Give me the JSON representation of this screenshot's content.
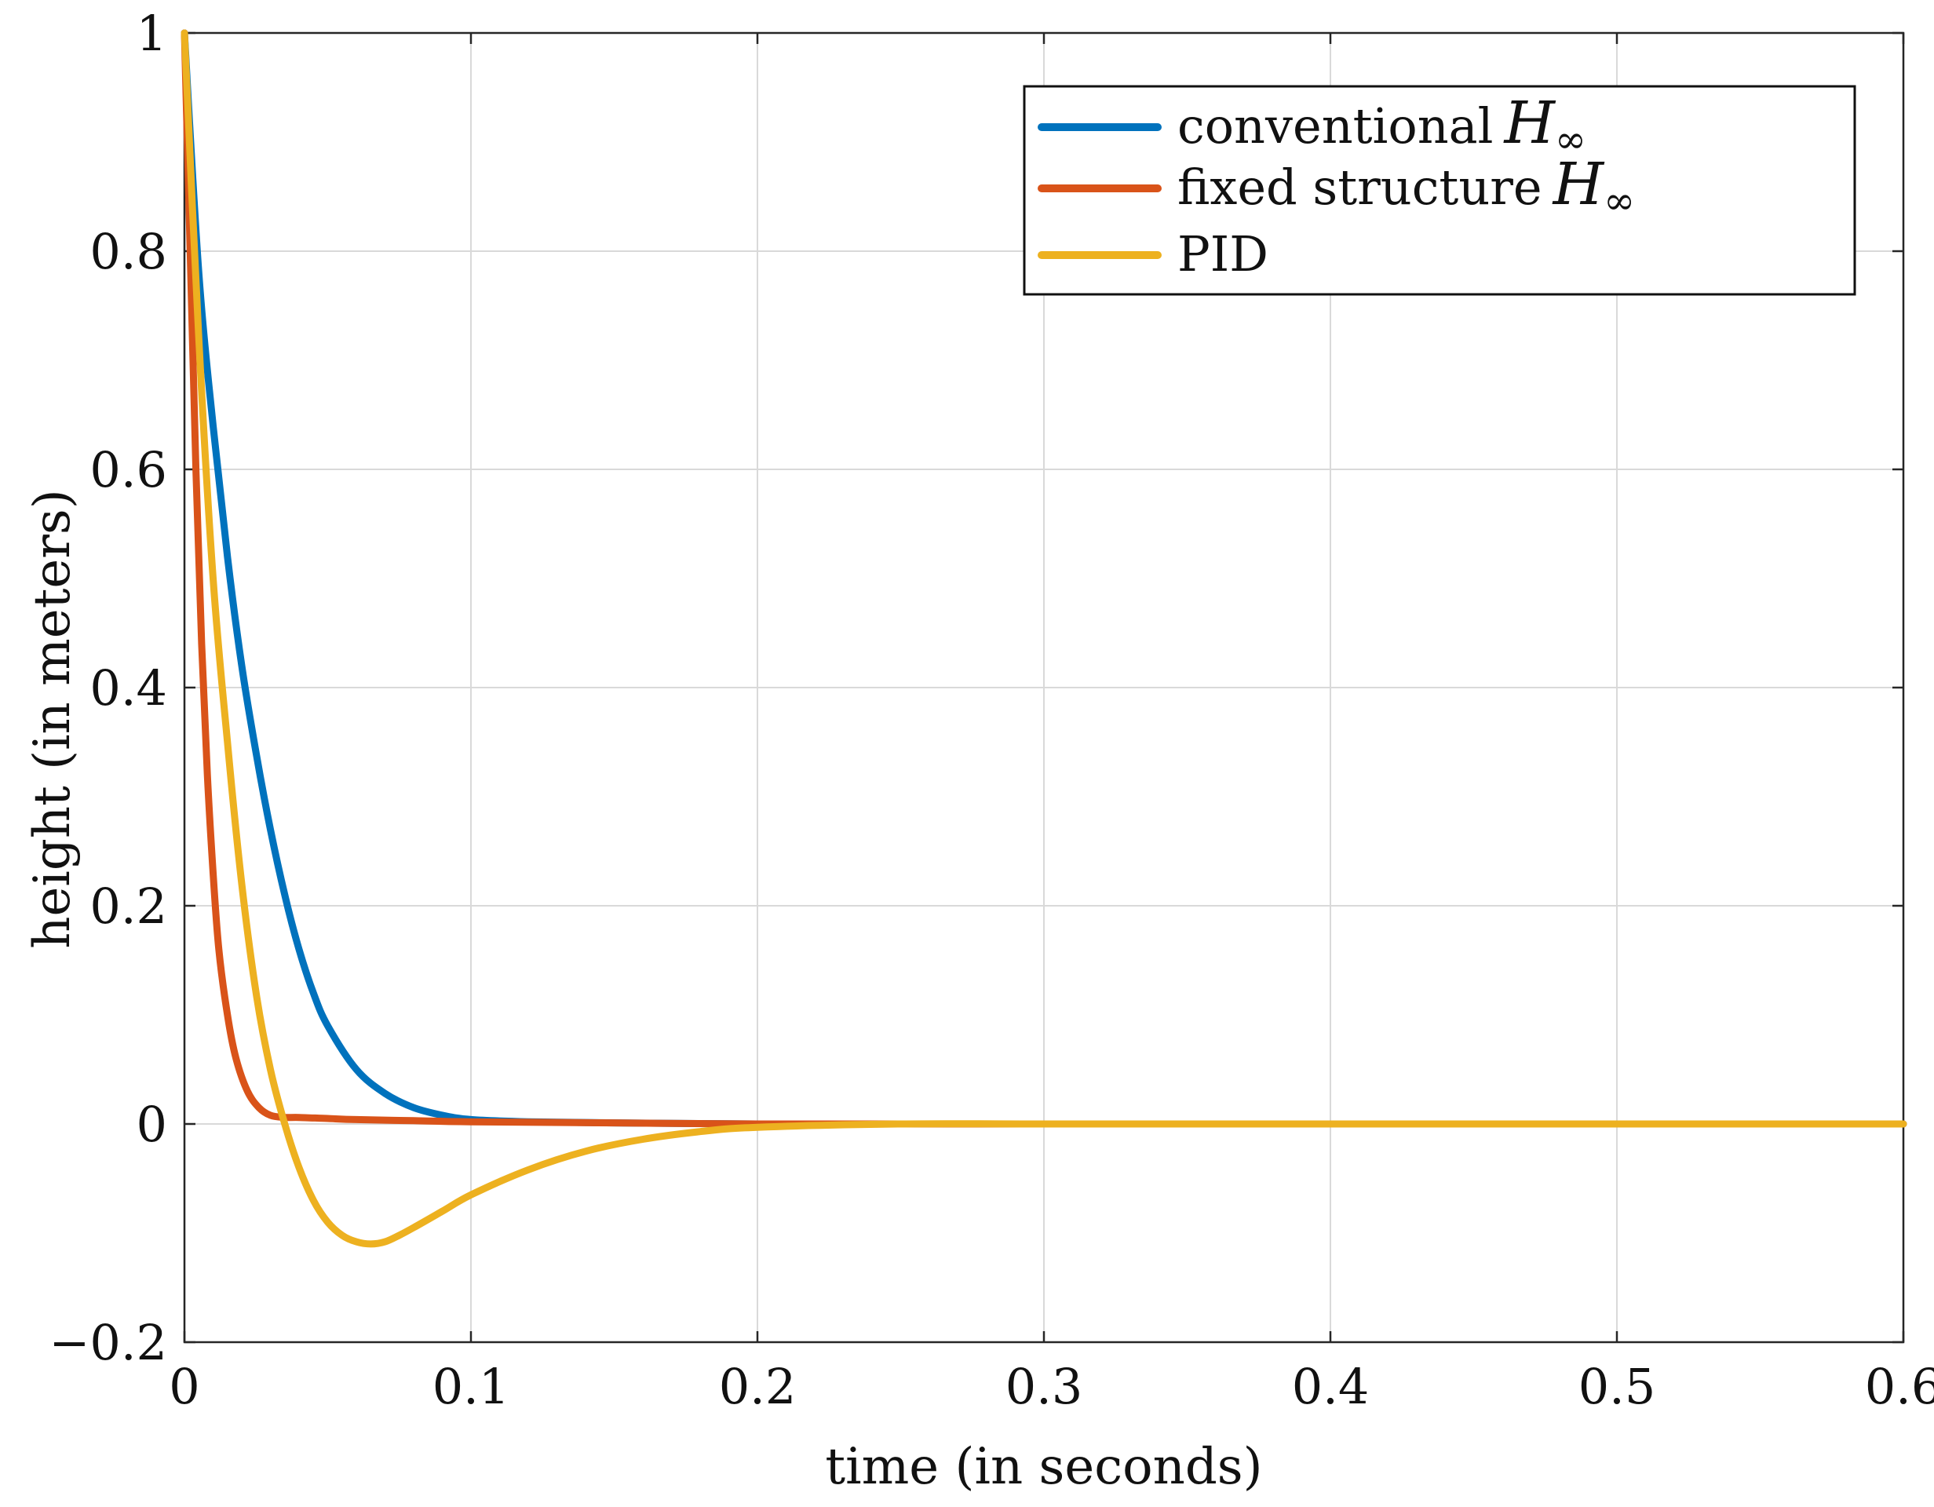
{
  "chart_data": {
    "type": "line",
    "title": "",
    "xlabel": "time (in seconds)",
    "ylabel": "height (in meters)",
    "xlim": [
      0,
      0.6
    ],
    "ylim": [
      -0.2,
      1
    ],
    "grid": true,
    "legend_position": "top-right",
    "x_ticks": [
      0,
      0.1,
      0.2,
      0.3,
      0.4,
      0.5,
      0.6
    ],
    "x_tick_labels": [
      "0",
      "0.1",
      "0.2",
      "0.3",
      "0.4",
      "0.5",
      "0.6"
    ],
    "y_ticks": [
      -0.2,
      0,
      0.2,
      0.4,
      0.6,
      0.8,
      1
    ],
    "y_tick_labels": [
      "−0.2",
      "0",
      "0.2",
      "0.4",
      "0.6",
      "0.8",
      "1"
    ],
    "series": [
      {
        "name": "conventional H∞",
        "label_text": "conventional",
        "label_symbol": "H",
        "label_subscript": "∞",
        "color": "#0072BD",
        "x": [
          0,
          0.005,
          0.01,
          0.015,
          0.02,
          0.025,
          0.03,
          0.035,
          0.04,
          0.045,
          0.05,
          0.06,
          0.07,
          0.08,
          0.09,
          0.1,
          0.12,
          0.15,
          0.2,
          0.3,
          0.4,
          0.5,
          0.6
        ],
        "y": [
          1.0,
          0.78,
          0.64,
          0.52,
          0.42,
          0.34,
          0.27,
          0.21,
          0.16,
          0.12,
          0.09,
          0.05,
          0.028,
          0.015,
          0.008,
          0.004,
          0.002,
          0.001,
          0.0,
          0.0,
          0.0,
          0.0,
          0.0
        ]
      },
      {
        "name": "fixed structure H∞",
        "label_text": "fixed structure",
        "label_symbol": "H",
        "label_subscript": "∞",
        "color": "#D95319",
        "x": [
          0,
          0.002,
          0.004,
          0.006,
          0.008,
          0.01,
          0.012,
          0.015,
          0.018,
          0.022,
          0.026,
          0.03,
          0.035,
          0.04,
          0.05,
          0.06,
          0.08,
          0.1,
          0.15,
          0.2,
          0.3,
          0.4,
          0.5,
          0.6
        ],
        "y": [
          1.0,
          0.8,
          0.6,
          0.44,
          0.32,
          0.23,
          0.16,
          0.1,
          0.06,
          0.03,
          0.015,
          0.008,
          0.006,
          0.006,
          0.005,
          0.004,
          0.003,
          0.002,
          0.001,
          0.0,
          0.0,
          0.0,
          0.0,
          0.0
        ]
      },
      {
        "name": "PID",
        "label_text": "PID",
        "label_symbol": "",
        "label_subscript": "",
        "color": "#EDB120",
        "x": [
          0,
          0.005,
          0.01,
          0.015,
          0.02,
          0.025,
          0.03,
          0.035,
          0.04,
          0.045,
          0.05,
          0.055,
          0.06,
          0.065,
          0.07,
          0.075,
          0.08,
          0.09,
          0.1,
          0.12,
          0.14,
          0.16,
          0.18,
          0.2,
          0.25,
          0.3,
          0.4,
          0.5,
          0.6
        ],
        "y": [
          1.0,
          0.72,
          0.5,
          0.35,
          0.22,
          0.12,
          0.05,
          0.0,
          -0.04,
          -0.07,
          -0.09,
          -0.102,
          -0.108,
          -0.11,
          -0.108,
          -0.102,
          -0.095,
          -0.08,
          -0.065,
          -0.042,
          -0.025,
          -0.014,
          -0.007,
          -0.003,
          0.0,
          0.0,
          0.0,
          0.0,
          0.0
        ]
      }
    ]
  }
}
